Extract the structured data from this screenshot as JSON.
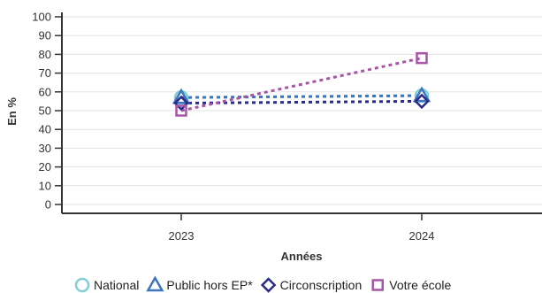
{
  "chart_data": {
    "type": "line",
    "xlabel": "Années",
    "ylabel": "En %",
    "categories": [
      "2023",
      "2024"
    ],
    "ylim": [
      0,
      100
    ],
    "yticks": [
      0,
      10,
      20,
      30,
      40,
      50,
      60,
      70,
      80,
      90,
      100
    ],
    "grid": true,
    "legend_position": "bottom",
    "line_style": "dotted",
    "series": [
      {
        "name": "National",
        "values": [
          57,
          58
        ],
        "color": "#7fd0d6",
        "marker": "circle-icon"
      },
      {
        "name": "Public hors EP*",
        "values": [
          57,
          58
        ],
        "color": "#3f74bf",
        "marker": "triangle-icon"
      },
      {
        "name": "Circonscription",
        "values": [
          54,
          55
        ],
        "color": "#2a2a8c",
        "marker": "diamond-icon"
      },
      {
        "name": "Votre école",
        "values": [
          50,
          78
        ],
        "color": "#a855a8",
        "marker": "square-icon"
      }
    ]
  }
}
